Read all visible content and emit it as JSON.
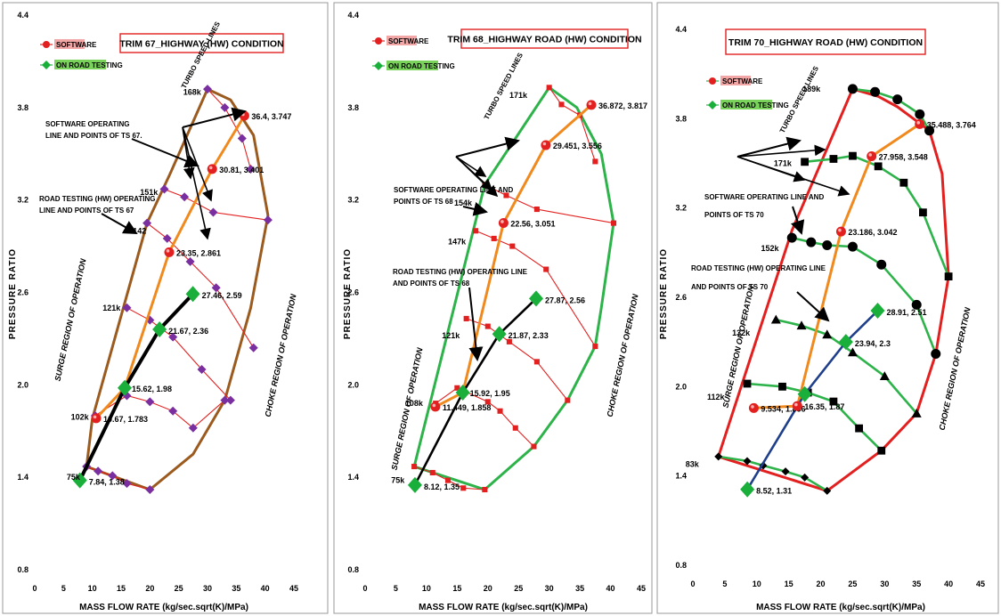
{
  "chart_data": [
    {
      "type": "line",
      "title": "TRIM  67_HIGHWAY (HW) CONDITION",
      "xlabel": "MASS FLOW RATE (kg/sec.sqrt(K)/MPa)",
      "ylabel": "PRESSURE RATIO",
      "xlim": [
        0,
        45
      ],
      "ylim": [
        0.8,
        4.4
      ],
      "xticks": [
        "0",
        "5",
        "10",
        "15",
        "20",
        "25",
        "30",
        "35",
        "40",
        "45"
      ],
      "yticks": [
        "0.8",
        "1.4",
        "2.0",
        "2.6",
        "3.2",
        "3.8",
        "4.4"
      ],
      "legend": [
        "SOFTWARE",
        "ON ROAD TESTING"
      ],
      "colors": {
        "software": "#e32020",
        "road": "#1aaf3a",
        "speed_line": "#e32020",
        "operating_line": "#f08a1e",
        "outline": "#9b5a1e",
        "road_line": "#000000",
        "marker": "#7a2fa0"
      },
      "speed_labels": [
        {
          "text": "75k",
          "x": 8.5,
          "y": 1.4
        },
        {
          "text": "102k",
          "x": 10,
          "y": 1.79
        },
        {
          "text": "121k",
          "x": 15.5,
          "y": 2.5
        },
        {
          "text": "142",
          "x": 20,
          "y": 3.0
        },
        {
          "text": "151k",
          "x": 22,
          "y": 3.25
        },
        {
          "text": "168k",
          "x": 29.5,
          "y": 3.9
        }
      ],
      "annotations": [
        "SOFTWARE OPERATING LINE AND POINTS OF TS 67.",
        "ROAD TESTING (HW)  OPERATING LINE AND POINTS OF  TS 67",
        "TURBO SPEED LINES"
      ],
      "regions": [
        "SURGE REGION OF OPERATION",
        "CHOKE REGION OF OPERATION"
      ],
      "outline": [
        [
          9,
          1.47
        ],
        [
          20,
          1.32
        ],
        [
          27.5,
          1.55
        ],
        [
          33,
          1.9
        ],
        [
          37.5,
          2.5
        ],
        [
          40.5,
          3.1
        ],
        [
          38,
          3.62
        ],
        [
          34,
          3.85
        ],
        [
          30,
          3.92
        ],
        [
          23.5,
          3.37
        ],
        [
          19.5,
          3.05
        ],
        [
          10,
          1.78
        ],
        [
          9,
          1.47
        ]
      ],
      "speed_lines": [
        [
          [
            9,
            1.47
          ],
          [
            11,
            1.44
          ],
          [
            13.5,
            1.41
          ],
          [
            16,
            1.36
          ],
          [
            20,
            1.32
          ]
        ],
        [
          [
            10.5,
            1.8
          ],
          [
            16,
            1.93
          ],
          [
            20,
            1.89
          ],
          [
            24,
            1.83
          ],
          [
            27.5,
            1.72
          ],
          [
            33,
            1.9
          ]
        ],
        [
          [
            16,
            2.5
          ],
          [
            20,
            2.42
          ],
          [
            24,
            2.31
          ],
          [
            29,
            2.1
          ],
          [
            34,
            1.9
          ]
        ],
        [
          [
            19.5,
            3.05
          ],
          [
            23,
            2.95
          ],
          [
            27,
            2.8
          ],
          [
            31.5,
            2.63
          ],
          [
            38,
            2.24
          ]
        ],
        [
          [
            22.5,
            3.27
          ],
          [
            26,
            3.22
          ],
          [
            31,
            3.12
          ],
          [
            40.5,
            3.07
          ]
        ],
        [
          [
            30,
            3.92
          ],
          [
            33,
            3.8
          ],
          [
            36,
            3.6
          ],
          [
            37.5,
            3.4
          ]
        ]
      ],
      "series": [
        {
          "name": "SOFTWARE",
          "x": [
            10.67,
            15.62,
            23.35,
            30.81,
            36.4
          ],
          "y": [
            1.783,
            1.98,
            2.861,
            3.401,
            3.747
          ],
          "labels": [
            "10.67, 1.783",
            "15.62, 1.98",
            "23.35, 2.861",
            "30.81, 3.401",
            "36.4, 3.747"
          ]
        },
        {
          "name": "ON ROAD TESTING",
          "x": [
            7.84,
            15.62,
            21.67,
            27.46
          ],
          "y": [
            1.38,
            1.98,
            2.36,
            2.59
          ],
          "labels": [
            "7.84, 1.38",
            "",
            "21.67, 2.36",
            "27.46, 2.59"
          ]
        }
      ]
    },
    {
      "type": "line",
      "title": "TRIM  68_HIGHWAY ROAD (HW) CONDITION",
      "xlabel": "MASS FLOW RATE (kg/sec.sqrt(K)/MPa)",
      "ylabel": "PRESSURE RATIO",
      "xlim": [
        0,
        45
      ],
      "ylim": [
        0.8,
        4.4
      ],
      "xticks": [
        "0",
        "5",
        "10",
        "15",
        "20",
        "25",
        "30",
        "35",
        "40",
        "45"
      ],
      "yticks": [
        "0.8",
        "1.4",
        "2.0",
        "2.6",
        "3.2",
        "3.8",
        "4.4"
      ],
      "legend": [
        "SOFTWARE",
        "ON  ROAD TESTING"
      ],
      "colors": {
        "software": "#e32020",
        "road": "#1aaf3a",
        "speed_line": "#e32020",
        "operating_line": "#f08a1e",
        "outline": "#2db34a",
        "road_line": "#000000",
        "marker": "#e32020"
      },
      "speed_labels": [
        {
          "text": "75k",
          "x": 7,
          "y": 1.38
        },
        {
          "text": "108k",
          "x": 10,
          "y": 1.88
        },
        {
          "text": "121k",
          "x": 16,
          "y": 2.32
        },
        {
          "text": "147k",
          "x": 17,
          "y": 2.93
        },
        {
          "text": "154k",
          "x": 18,
          "y": 3.18
        },
        {
          "text": "171k",
          "x": 27,
          "y": 3.88
        }
      ],
      "annotations": [
        "SOFTWARE  OPERATING  LINE AND POINTS OF TS 68",
        "ROAD TESTING (HW)  OPERATING  LINE AND POINTS OF TS 68",
        "TURBO SPEED LINES"
      ],
      "regions": [
        "SURGE REGION OF OPERATION",
        "CHOKE REGION OF OPERATION"
      ],
      "outline": [
        [
          8,
          1.47
        ],
        [
          19.5,
          1.32
        ],
        [
          27.5,
          1.6
        ],
        [
          33,
          1.9
        ],
        [
          37.5,
          2.25
        ],
        [
          38.5,
          2.5
        ],
        [
          40.5,
          3.05
        ],
        [
          38.5,
          3.5
        ],
        [
          34.5,
          3.8
        ],
        [
          30,
          3.93
        ],
        [
          19.5,
          3.3
        ],
        [
          8,
          1.47
        ]
      ],
      "speed_lines": [
        [
          [
            8,
            1.47
          ],
          [
            11,
            1.43
          ],
          [
            13.5,
            1.38
          ],
          [
            16,
            1.33
          ],
          [
            19.5,
            1.32
          ]
        ],
        [
          [
            11.5,
            1.88
          ],
          [
            15,
            1.98
          ],
          [
            20,
            1.89
          ],
          [
            22,
            1.83
          ],
          [
            24.5,
            1.72
          ],
          [
            27.5,
            1.6
          ]
        ],
        [
          [
            16.5,
            2.43
          ],
          [
            20,
            2.38
          ],
          [
            23.5,
            2.28
          ],
          [
            28,
            2.15
          ],
          [
            33,
            1.9
          ]
        ],
        [
          [
            18,
            3.0
          ],
          [
            21,
            2.95
          ],
          [
            24,
            2.9
          ],
          [
            29.5,
            2.75
          ],
          [
            37.5,
            2.25
          ]
        ],
        [
          [
            19.5,
            3.3
          ],
          [
            23,
            3.23
          ],
          [
            28,
            3.14
          ],
          [
            40.5,
            3.05
          ]
        ],
        [
          [
            30,
            3.93
          ],
          [
            32,
            3.82
          ],
          [
            35,
            3.75
          ],
          [
            37.5,
            3.45
          ]
        ]
      ],
      "series": [
        {
          "name": "SOFTWARE",
          "x": [
            11.449,
            15.92,
            22.56,
            29.451,
            36.872
          ],
          "y": [
            1.858,
            1.95,
            3.051,
            3.556,
            3.817
          ],
          "labels": [
            "11.449, 1.858",
            "15.92, 1.95",
            "22.56, 3.051",
            "29.451, 3.556",
            "36.872, 3.817"
          ]
        },
        {
          "name": "ON ROAD TESTING",
          "x": [
            8.12,
            15.92,
            21.87,
            27.87
          ],
          "y": [
            1.35,
            1.95,
            2.33,
            2.56
          ],
          "labels": [
            "8.12, 1.35",
            "",
            "21.87, 2.33",
            "27.87, 2.56"
          ]
        }
      ]
    },
    {
      "type": "line",
      "title": "TRIM  70_HIGHWAY ROAD  (HW) CONDITION",
      "xlabel": "MASS FLOW RATE (kg/sec.sqrt(K)/MPa)",
      "ylabel": "PRESSURE RATIO",
      "xlim": [
        0,
        45
      ],
      "ylim": [
        0.8,
        4.4
      ],
      "xticks": [
        "0",
        "5",
        "10",
        "15",
        "20",
        "25",
        "30",
        "35",
        "40",
        "45"
      ],
      "yticks": [
        "0.8",
        "1.4",
        "2.0",
        "2.6",
        "3.2",
        "3.8",
        "4.4"
      ],
      "legend": [
        "SOFTWARE",
        "ON  ROAD TESTING"
      ],
      "colors": {
        "software": "#e32020",
        "road": "#1aaf3a",
        "speed_line": "#2db34a",
        "operating_line": "#f08a1e",
        "outline": "#e32020",
        "road_line": "#1f3f8a",
        "marker": "#000000"
      },
      "speed_labels": [
        {
          "text": "83k",
          "x": 1.5,
          "y": 1.48
        },
        {
          "text": "112k",
          "x": 5.5,
          "y": 1.93
        },
        {
          "text": "132k",
          "x": 9.5,
          "y": 2.36
        },
        {
          "text": "152k",
          "x": 14,
          "y": 2.93
        },
        {
          "text": "171k",
          "x": 16,
          "y": 3.5
        },
        {
          "text": "189k",
          "x": 20.5,
          "y": 4.0
        }
      ],
      "annotations": [
        "SOFTWARE  OPERATING  LINE AND POINTS OF TS 70",
        "ROAD TESTING (HW)  OPERATING  LINE AND POINTS OF TS 70",
        "TURBO SPEED LINES"
      ],
      "regions": [
        "SURGE REGION OF OPERATION",
        "CHOKE REGION OF OPERATION"
      ],
      "outline": [
        [
          4,
          1.53
        ],
        [
          21,
          1.3
        ],
        [
          29.5,
          1.57
        ],
        [
          35,
          1.82
        ],
        [
          38,
          2.22
        ],
        [
          40,
          2.74
        ],
        [
          39,
          3.43
        ],
        [
          37,
          3.72
        ],
        [
          32,
          3.88
        ],
        [
          29,
          3.95
        ],
        [
          25,
          4.0
        ],
        [
          15.5,
          3.05
        ],
        [
          4,
          1.53
        ]
      ],
      "speed_lines": [
        [
          [
            4,
            1.53
          ],
          [
            8.5,
            1.5
          ],
          [
            11,
            1.47
          ],
          [
            14.5,
            1.43
          ],
          [
            17.5,
            1.39
          ],
          [
            21,
            1.3
          ]
        ],
        [
          [
            8.5,
            2.02
          ],
          [
            14,
            2.0
          ],
          [
            18,
            1.96
          ],
          [
            22,
            1.9
          ],
          [
            26,
            1.72
          ],
          [
            29.5,
            1.57
          ]
        ],
        [
          [
            13,
            2.45
          ],
          [
            17,
            2.41
          ],
          [
            21,
            2.35
          ],
          [
            25,
            2.23
          ],
          [
            30,
            2.07
          ],
          [
            35,
            1.82
          ]
        ],
        [
          [
            15.5,
            3.0
          ],
          [
            18.5,
            2.97
          ],
          [
            21,
            2.95
          ],
          [
            25,
            2.94
          ],
          [
            29.5,
            2.82
          ],
          [
            35,
            2.55
          ],
          [
            38,
            2.22
          ]
        ],
        [
          [
            17.5,
            3.51
          ],
          [
            22,
            3.53
          ],
          [
            25,
            3.55
          ],
          [
            29,
            3.48
          ],
          [
            33,
            3.37
          ],
          [
            36,
            3.17
          ],
          [
            40,
            2.74
          ]
        ],
        [
          [
            25,
            4.0
          ],
          [
            28.5,
            3.98
          ],
          [
            32,
            3.93
          ],
          [
            35.5,
            3.83
          ],
          [
            37,
            3.72
          ]
        ]
      ],
      "series": [
        {
          "name": "SOFTWARE",
          "x": [
            9.534,
            16.35,
            23.186,
            27.958,
            35.488
          ],
          "y": [
            1.856,
            1.87,
            3.042,
            3.548,
            3.764
          ],
          "labels": [
            "9.534, 1.856",
            "16.35, 1.87",
            "23.186, 3.042",
            "27.958, 3.548",
            "35.488, 3.764"
          ]
        },
        {
          "name": "ON ROAD TESTING",
          "x": [
            8.52,
            17.5,
            23.94,
            28.91
          ],
          "y": [
            1.31,
            1.95,
            2.3,
            2.51
          ],
          "labels": [
            "8.52, 1.31",
            "",
            "23.94, 2.3",
            "28.91, 2.51"
          ]
        }
      ]
    }
  ]
}
